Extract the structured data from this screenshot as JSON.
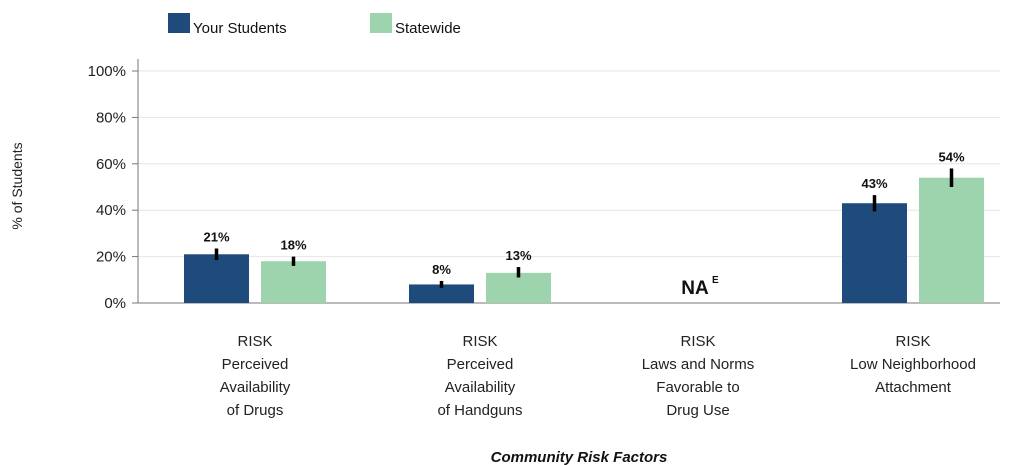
{
  "chart_data": {
    "type": "bar",
    "xlabel": "Community Risk Factors",
    "ylabel": "% of Students",
    "ylim": [
      0,
      100
    ],
    "yticks": [
      "0%",
      "20%",
      "40%",
      "60%",
      "80%",
      "100%"
    ],
    "grid": true,
    "legend_position": "top-left",
    "categories": [
      [
        "RISK",
        "Perceived",
        "Availability",
        "of Drugs"
      ],
      [
        "RISK",
        "Perceived",
        "Availability",
        "of Handguns"
      ],
      [
        "RISK",
        "Laws and Norms",
        "Favorable to",
        "Drug Use"
      ],
      [
        "RISK",
        "Low Neighborhood",
        "Attachment"
      ]
    ],
    "series": [
      {
        "name": "Your Students",
        "color": "#1f4a7c",
        "values": [
          21,
          8,
          null,
          43
        ],
        "labels": [
          "21%",
          "8%",
          "",
          "43%"
        ],
        "error_low": [
          18.5,
          6.5,
          null,
          39.5
        ],
        "error_high": [
          23.5,
          9.5,
          null,
          46.5
        ]
      },
      {
        "name": "Statewide",
        "color": "#9dd3ad",
        "values": [
          18,
          13,
          null,
          54
        ],
        "labels": [
          "18%",
          "13%",
          "",
          "54%"
        ],
        "error_low": [
          16,
          11,
          null,
          50
        ],
        "error_high": [
          20,
          15.5,
          null,
          58
        ]
      }
    ],
    "annotations": [
      {
        "category_index": 2,
        "text": "NA",
        "superscript": "E"
      }
    ]
  }
}
